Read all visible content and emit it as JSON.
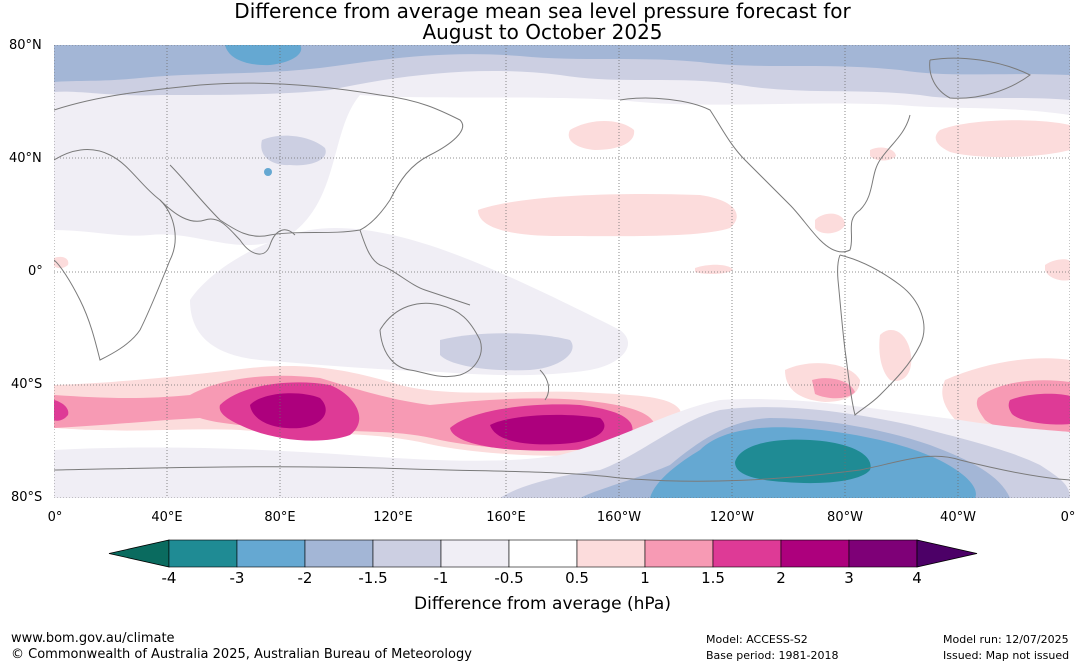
{
  "title_line1": "Difference from average mean sea level pressure forecast for",
  "title_line2": "August to October 2025",
  "map": {
    "lat_labels": [
      "80°N",
      "40°N",
      "0°",
      "40°S",
      "80°S"
    ],
    "lon_labels": [
      "0°",
      "40°E",
      "80°E",
      "120°E",
      "160°E",
      "160°W",
      "120°W",
      "80°W",
      "40°W",
      "0°"
    ],
    "grid_lines": "dotted"
  },
  "colorbar": {
    "title": "Difference from average (hPa)",
    "labels": [
      "-4",
      "-3",
      "-2",
      "-1.5",
      "-1",
      "-0.5",
      "0.5",
      "1",
      "1.5",
      "2",
      "3",
      "4"
    ],
    "colors": [
      "#1f8b94",
      "#65a8d2",
      "#a3b6d6",
      "#cccfe2",
      "#f0eef5",
      "#ffffff",
      "#fcdcdc",
      "#f79ab4",
      "#de3a96",
      "#ad007d",
      "#7e0077"
    ],
    "extend_low_color": "#0a6b5f",
    "extend_high_color": "#4c0067"
  },
  "footer": {
    "url": "www.bom.gov.au/climate",
    "copyright": "© Commonwealth of Australia 2025, Australian Bureau of Meteorology",
    "model": "Model: ACCESS-S2",
    "base_period": "Base period: 1981-2018",
    "model_run": "Model run: 12/07/2025",
    "issued": "Issued: Map not issued"
  }
}
